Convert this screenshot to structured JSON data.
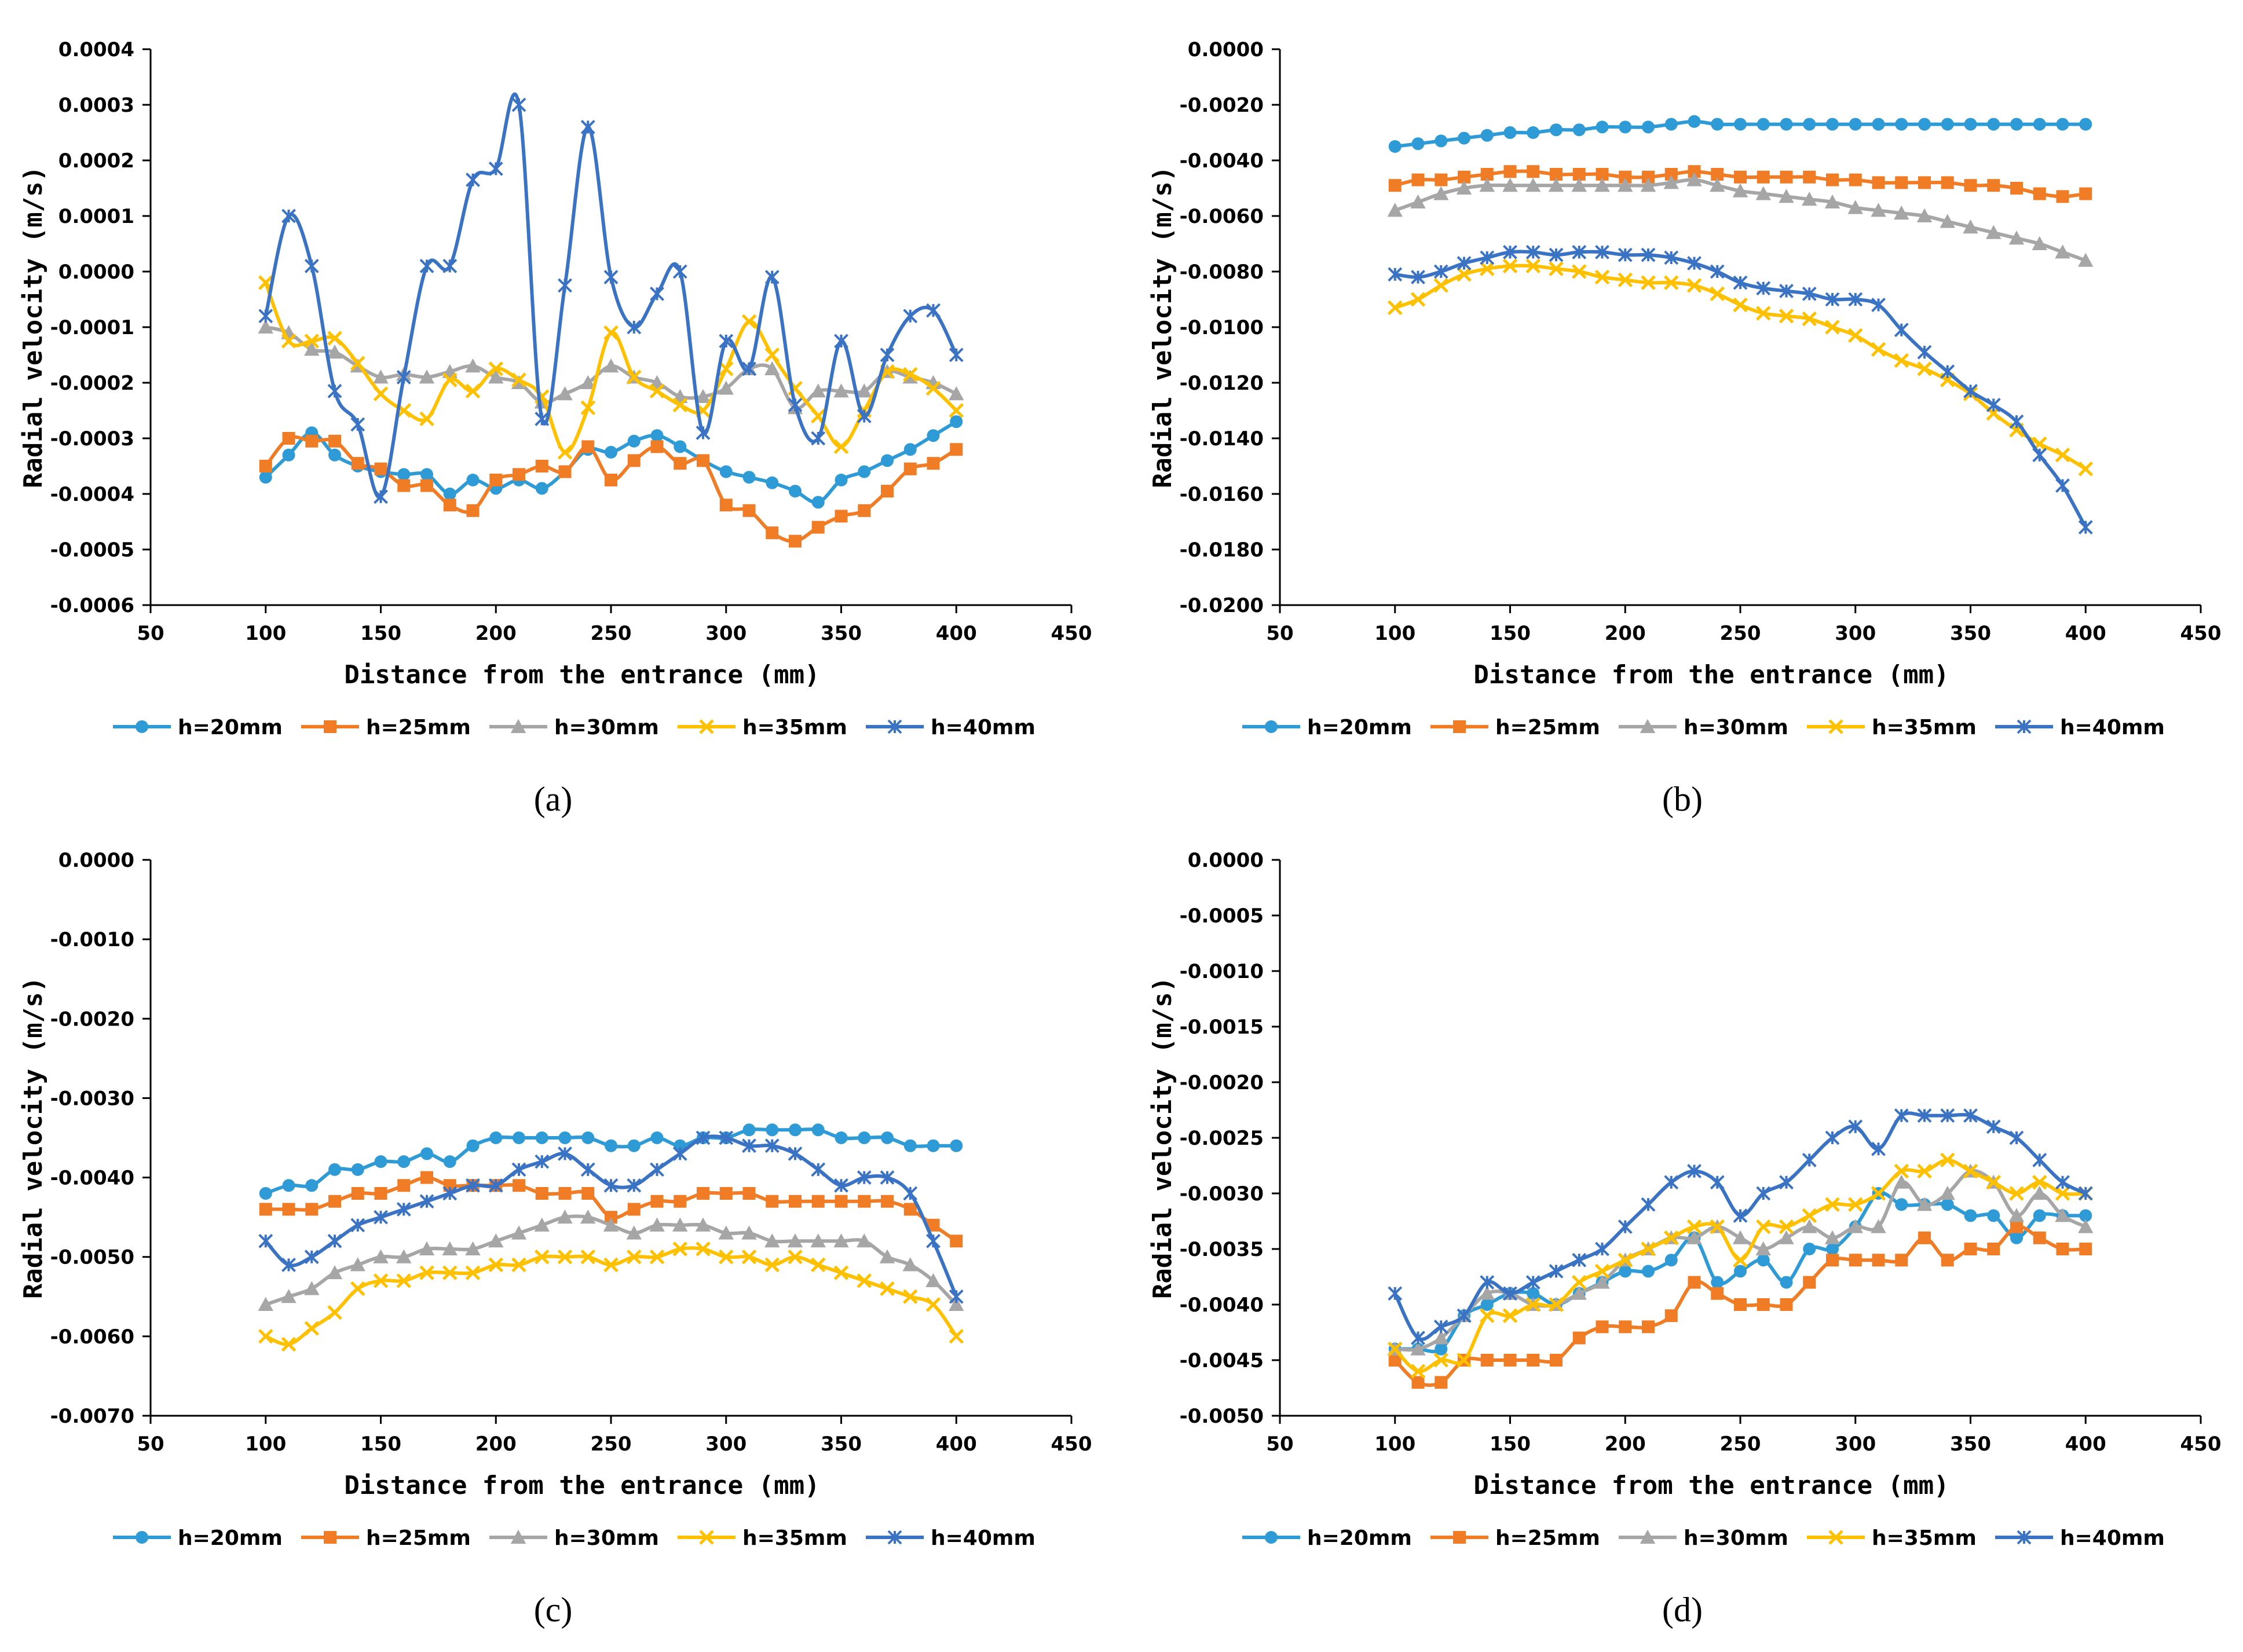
{
  "series_style": [
    {
      "color": "#2E9BD6",
      "marker": "circle"
    },
    {
      "color": "#F07C26",
      "marker": "square"
    },
    {
      "color": "#A6A6A6",
      "marker": "triangle"
    },
    {
      "color": "#FFC000",
      "marker": "x"
    },
    {
      "color": "#3A72C4",
      "marker": "star"
    }
  ],
  "chart_data": [
    {
      "type": "line",
      "caption": "(a)",
      "xlabel": "Distance from the entrance (mm)",
      "ylabel": "Radial velocity (m/s)",
      "xlim": [
        50,
        450
      ],
      "ylim": [
        -0.0006,
        0.0004
      ],
      "xticks": [
        "50",
        "100",
        "150",
        "200",
        "250",
        "300",
        "350",
        "400",
        "450"
      ],
      "yticks": [
        "0.0004",
        "0.0003",
        "0.0002",
        "0.0001",
        "0.0000",
        "-0.0001",
        "-0.0002",
        "-0.0003",
        "-0.0004",
        "-0.0005",
        "-0.0006"
      ],
      "x": [
        100,
        110,
        120,
        130,
        140,
        150,
        160,
        170,
        180,
        190,
        200,
        210,
        220,
        230,
        240,
        250,
        260,
        270,
        280,
        290,
        300,
        310,
        320,
        330,
        340,
        350,
        360,
        370,
        380,
        390,
        400
      ],
      "series": [
        {
          "name": "h=20mm",
          "values": [
            -0.00037,
            -0.00033,
            -0.00029,
            -0.00033,
            -0.00035,
            -0.00036,
            -0.000365,
            -0.000365,
            -0.0004,
            -0.000375,
            -0.00039,
            -0.000375,
            -0.00039,
            -0.00036,
            -0.00032,
            -0.000325,
            -0.000305,
            -0.000295,
            -0.000315,
            -0.00034,
            -0.00036,
            -0.00037,
            -0.00038,
            -0.000395,
            -0.000415,
            -0.000375,
            -0.00036,
            -0.00034,
            -0.00032,
            -0.000295,
            -0.00027
          ]
        },
        {
          "name": "h=25mm",
          "values": [
            -0.00035,
            -0.0003,
            -0.000305,
            -0.000305,
            -0.000345,
            -0.000355,
            -0.000385,
            -0.000385,
            -0.00042,
            -0.00043,
            -0.000375,
            -0.000365,
            -0.00035,
            -0.00036,
            -0.000315,
            -0.000375,
            -0.00034,
            -0.000315,
            -0.000345,
            -0.00034,
            -0.00042,
            -0.00043,
            -0.00047,
            -0.000485,
            -0.00046,
            -0.00044,
            -0.00043,
            -0.000395,
            -0.000355,
            -0.000345,
            -0.00032
          ]
        },
        {
          "name": "h=30mm",
          "values": [
            -0.0001,
            -0.00011,
            -0.00014,
            -0.000145,
            -0.00017,
            -0.00019,
            -0.000185,
            -0.00019,
            -0.00018,
            -0.00017,
            -0.00019,
            -0.0002,
            -0.000235,
            -0.00022,
            -0.0002,
            -0.00017,
            -0.00019,
            -0.0002,
            -0.000225,
            -0.000225,
            -0.00021,
            -0.000175,
            -0.000175,
            -0.000245,
            -0.000215,
            -0.000215,
            -0.000215,
            -0.00018,
            -0.00019,
            -0.0002,
            -0.00022
          ]
        },
        {
          "name": "h=35mm",
          "values": [
            -2e-05,
            -0.000125,
            -0.000125,
            -0.00012,
            -0.000165,
            -0.00022,
            -0.00025,
            -0.000265,
            -0.000195,
            -0.000215,
            -0.000175,
            -0.000195,
            -0.000225,
            -0.000325,
            -0.000245,
            -0.00011,
            -0.00019,
            -0.000215,
            -0.00024,
            -0.00025,
            -0.000175,
            -9e-05,
            -0.00015,
            -0.00021,
            -0.00026,
            -0.000315,
            -0.00025,
            -0.00018,
            -0.000185,
            -0.00021,
            -0.00025
          ]
        },
        {
          "name": "h=40mm",
          "values": [
            -8e-05,
            0.0001,
            1e-05,
            -0.000215,
            -0.000275,
            -0.000405,
            -0.00019,
            1e-05,
            1e-05,
            0.000165,
            0.000185,
            0.0003,
            -0.000265,
            -2.5e-05,
            0.00026,
            -1e-05,
            -0.0001,
            -4e-05,
            0,
            -0.00029,
            -0.000125,
            -0.000175,
            -1e-05,
            -0.00024,
            -0.0003,
            -0.000125,
            -0.00026,
            -0.00015,
            -8e-05,
            -7e-05,
            -0.00015
          ]
        }
      ]
    },
    {
      "type": "line",
      "caption": "(b)",
      "xlabel": "Distance from the entrance (mm)",
      "ylabel": "Radial velocity (m/s)",
      "xlim": [
        50,
        450
      ],
      "ylim": [
        -0.02,
        0
      ],
      "xticks": [
        "50",
        "100",
        "150",
        "200",
        "250",
        "300",
        "350",
        "400",
        "450"
      ],
      "yticks": [
        "0.0000",
        "-0.0020",
        "-0.0040",
        "-0.0060",
        "-0.0080",
        "-0.0100",
        "-0.0120",
        "-0.0140",
        "-0.0160",
        "-0.0180",
        "-0.0200"
      ],
      "x": [
        100,
        110,
        120,
        130,
        140,
        150,
        160,
        170,
        180,
        190,
        200,
        210,
        220,
        230,
        240,
        250,
        260,
        270,
        280,
        290,
        300,
        310,
        320,
        330,
        340,
        350,
        360,
        370,
        380,
        390,
        400
      ],
      "series": [
        {
          "name": "h=20mm",
          "values": [
            -0.0035,
            -0.0034,
            -0.0033,
            -0.0032,
            -0.0031,
            -0.003,
            -0.003,
            -0.0029,
            -0.0029,
            -0.0028,
            -0.0028,
            -0.0028,
            -0.0027,
            -0.0026,
            -0.0027,
            -0.0027,
            -0.0027,
            -0.0027,
            -0.0027,
            -0.0027,
            -0.0027,
            -0.0027,
            -0.0027,
            -0.0027,
            -0.0027,
            -0.0027,
            -0.0027,
            -0.0027,
            -0.0027,
            -0.0027,
            -0.0027
          ]
        },
        {
          "name": "h=25mm",
          "values": [
            -0.0049,
            -0.0047,
            -0.0047,
            -0.0046,
            -0.0045,
            -0.0044,
            -0.0044,
            -0.0045,
            -0.0045,
            -0.0045,
            -0.0046,
            -0.0046,
            -0.0045,
            -0.0044,
            -0.0045,
            -0.0046,
            -0.0046,
            -0.0046,
            -0.0046,
            -0.0047,
            -0.0047,
            -0.0048,
            -0.0048,
            -0.0048,
            -0.0048,
            -0.0049,
            -0.0049,
            -0.005,
            -0.0052,
            -0.0053,
            -0.0052
          ]
        },
        {
          "name": "h=30mm",
          "values": [
            -0.0058,
            -0.0055,
            -0.0052,
            -0.005,
            -0.0049,
            -0.0049,
            -0.0049,
            -0.0049,
            -0.0049,
            -0.0049,
            -0.0049,
            -0.0049,
            -0.0048,
            -0.0047,
            -0.0049,
            -0.0051,
            -0.0052,
            -0.0053,
            -0.0054,
            -0.0055,
            -0.0057,
            -0.0058,
            -0.0059,
            -0.006,
            -0.0062,
            -0.0064,
            -0.0066,
            -0.0068,
            -0.007,
            -0.0073,
            -0.0076
          ]
        },
        {
          "name": "h=35mm",
          "values": [
            -0.0093,
            -0.009,
            -0.0085,
            -0.0081,
            -0.0079,
            -0.0078,
            -0.0078,
            -0.0079,
            -0.008,
            -0.0082,
            -0.0083,
            -0.0084,
            -0.0084,
            -0.0085,
            -0.0088,
            -0.0092,
            -0.0095,
            -0.0096,
            -0.0097,
            -0.01,
            -0.0103,
            -0.0108,
            -0.0112,
            -0.0115,
            -0.0119,
            -0.0124,
            -0.0131,
            -0.0137,
            -0.0142,
            -0.0146,
            -0.0151
          ]
        },
        {
          "name": "h=40mm",
          "values": [
            -0.0081,
            -0.0082,
            -0.008,
            -0.0077,
            -0.0075,
            -0.0073,
            -0.0073,
            -0.0074,
            -0.0073,
            -0.0073,
            -0.0074,
            -0.0074,
            -0.0075,
            -0.0077,
            -0.008,
            -0.0084,
            -0.0086,
            -0.0087,
            -0.0088,
            -0.009,
            -0.009,
            -0.0092,
            -0.0101,
            -0.0109,
            -0.0116,
            -0.0123,
            -0.0128,
            -0.0134,
            -0.0146,
            -0.0157,
            -0.0172
          ]
        }
      ]
    },
    {
      "type": "line",
      "caption": "(c)",
      "xlabel": "Distance from the entrance (mm)",
      "ylabel": "Radial velocity (m/s)",
      "xlim": [
        50,
        450
      ],
      "ylim": [
        -0.007,
        0
      ],
      "xticks": [
        "50",
        "100",
        "150",
        "200",
        "250",
        "300",
        "350",
        "400",
        "450"
      ],
      "yticks": [
        "0.0000",
        "-0.0010",
        "-0.0020",
        "-0.0030",
        "-0.0040",
        "-0.0050",
        "-0.0060",
        "-0.0070"
      ],
      "x": [
        100,
        110,
        120,
        130,
        140,
        150,
        160,
        170,
        180,
        190,
        200,
        210,
        220,
        230,
        240,
        250,
        260,
        270,
        280,
        290,
        300,
        310,
        320,
        330,
        340,
        350,
        360,
        370,
        380,
        390,
        400
      ],
      "series": [
        {
          "name": "h=20mm",
          "values": [
            -0.0042,
            -0.0041,
            -0.0041,
            -0.0039,
            -0.0039,
            -0.0038,
            -0.0038,
            -0.0037,
            -0.0038,
            -0.0036,
            -0.0035,
            -0.0035,
            -0.0035,
            -0.0035,
            -0.0035,
            -0.0036,
            -0.0036,
            -0.0035,
            -0.0036,
            -0.0035,
            -0.0035,
            -0.0034,
            -0.0034,
            -0.0034,
            -0.0034,
            -0.0035,
            -0.0035,
            -0.0035,
            -0.0036,
            -0.0036,
            -0.0036
          ]
        },
        {
          "name": "h=25mm",
          "values": [
            -0.0044,
            -0.0044,
            -0.0044,
            -0.0043,
            -0.0042,
            -0.0042,
            -0.0041,
            -0.004,
            -0.0041,
            -0.0041,
            -0.0041,
            -0.0041,
            -0.0042,
            -0.0042,
            -0.0042,
            -0.0045,
            -0.0044,
            -0.0043,
            -0.0043,
            -0.0042,
            -0.0042,
            -0.0042,
            -0.0043,
            -0.0043,
            -0.0043,
            -0.0043,
            -0.0043,
            -0.0043,
            -0.0044,
            -0.0046,
            -0.0048
          ]
        },
        {
          "name": "h=30mm",
          "values": [
            -0.0056,
            -0.0055,
            -0.0054,
            -0.0052,
            -0.0051,
            -0.005,
            -0.005,
            -0.0049,
            -0.0049,
            -0.0049,
            -0.0048,
            -0.0047,
            -0.0046,
            -0.0045,
            -0.0045,
            -0.0046,
            -0.0047,
            -0.0046,
            -0.0046,
            -0.0046,
            -0.0047,
            -0.0047,
            -0.0048,
            -0.0048,
            -0.0048,
            -0.0048,
            -0.0048,
            -0.005,
            -0.0051,
            -0.0053,
            -0.0056
          ]
        },
        {
          "name": "h=35mm",
          "values": [
            -0.006,
            -0.0061,
            -0.0059,
            -0.0057,
            -0.0054,
            -0.0053,
            -0.0053,
            -0.0052,
            -0.0052,
            -0.0052,
            -0.0051,
            -0.0051,
            -0.005,
            -0.005,
            -0.005,
            -0.0051,
            -0.005,
            -0.005,
            -0.0049,
            -0.0049,
            -0.005,
            -0.005,
            -0.0051,
            -0.005,
            -0.0051,
            -0.0052,
            -0.0053,
            -0.0054,
            -0.0055,
            -0.0056,
            -0.006
          ]
        },
        {
          "name": "h=40mm",
          "values": [
            -0.0048,
            -0.0051,
            -0.005,
            -0.0048,
            -0.0046,
            -0.0045,
            -0.0044,
            -0.0043,
            -0.0042,
            -0.0041,
            -0.0041,
            -0.0039,
            -0.0038,
            -0.0037,
            -0.0039,
            -0.0041,
            -0.0041,
            -0.0039,
            -0.0037,
            -0.0035,
            -0.0035,
            -0.0036,
            -0.0036,
            -0.0037,
            -0.0039,
            -0.0041,
            -0.004,
            -0.004,
            -0.0042,
            -0.0048,
            -0.0055
          ]
        }
      ]
    },
    {
      "type": "line",
      "caption": "(d)",
      "xlabel": "Distance from the entrance (mm)",
      "ylabel": "Radial velocity (m/s)",
      "xlim": [
        50,
        450
      ],
      "ylim": [
        -0.005,
        0
      ],
      "xticks": [
        "50",
        "100",
        "150",
        "200",
        "250",
        "300",
        "350",
        "400",
        "450"
      ],
      "yticks": [
        "0.0000",
        "-0.0005",
        "-0.0010",
        "-0.0015",
        "-0.0020",
        "-0.0025",
        "-0.0030",
        "-0.0035",
        "-0.0040",
        "-0.0045",
        "-0.0050"
      ],
      "x": [
        100,
        110,
        120,
        130,
        140,
        150,
        160,
        170,
        180,
        190,
        200,
        210,
        220,
        230,
        240,
        250,
        260,
        270,
        280,
        290,
        300,
        310,
        320,
        330,
        340,
        350,
        360,
        370,
        380,
        390,
        400
      ],
      "series": [
        {
          "name": "h=20mm",
          "values": [
            -0.0044,
            -0.0044,
            -0.0044,
            -0.0041,
            -0.004,
            -0.0039,
            -0.0039,
            -0.004,
            -0.0039,
            -0.0038,
            -0.0037,
            -0.0037,
            -0.0036,
            -0.0034,
            -0.0038,
            -0.0037,
            -0.0036,
            -0.0038,
            -0.0035,
            -0.0035,
            -0.0033,
            -0.003,
            -0.0031,
            -0.0031,
            -0.0031,
            -0.0032,
            -0.0032,
            -0.0034,
            -0.0032,
            -0.0032,
            -0.0032
          ]
        },
        {
          "name": "h=25mm",
          "values": [
            -0.0045,
            -0.0047,
            -0.0047,
            -0.0045,
            -0.0045,
            -0.0045,
            -0.0045,
            -0.0045,
            -0.0043,
            -0.0042,
            -0.0042,
            -0.0042,
            -0.0041,
            -0.0038,
            -0.0039,
            -0.004,
            -0.004,
            -0.004,
            -0.0038,
            -0.0036,
            -0.0036,
            -0.0036,
            -0.0036,
            -0.0034,
            -0.0036,
            -0.0035,
            -0.0035,
            -0.0033,
            -0.0034,
            -0.0035,
            -0.0035
          ]
        },
        {
          "name": "h=30mm",
          "values": [
            -0.0044,
            -0.0044,
            -0.0043,
            -0.0041,
            -0.0039,
            -0.0039,
            -0.004,
            -0.004,
            -0.0039,
            -0.0038,
            -0.0036,
            -0.0035,
            -0.0034,
            -0.0034,
            -0.0033,
            -0.0034,
            -0.0035,
            -0.0034,
            -0.0033,
            -0.0034,
            -0.0033,
            -0.0033,
            -0.0029,
            -0.0031,
            -0.003,
            -0.0028,
            -0.0029,
            -0.0032,
            -0.003,
            -0.0032,
            -0.0033
          ]
        },
        {
          "name": "h=35mm",
          "values": [
            -0.0044,
            -0.0046,
            -0.0045,
            -0.0045,
            -0.0041,
            -0.0041,
            -0.004,
            -0.004,
            -0.0038,
            -0.0037,
            -0.0036,
            -0.0035,
            -0.0034,
            -0.0033,
            -0.0033,
            -0.0036,
            -0.0033,
            -0.0033,
            -0.0032,
            -0.0031,
            -0.0031,
            -0.003,
            -0.0028,
            -0.0028,
            -0.0027,
            -0.0028,
            -0.0029,
            -0.003,
            -0.0029,
            -0.003,
            -0.003
          ]
        },
        {
          "name": "h=40mm",
          "values": [
            -0.0039,
            -0.0043,
            -0.0042,
            -0.0041,
            -0.0038,
            -0.0039,
            -0.0038,
            -0.0037,
            -0.0036,
            -0.0035,
            -0.0033,
            -0.0031,
            -0.0029,
            -0.0028,
            -0.0029,
            -0.0032,
            -0.003,
            -0.0029,
            -0.0027,
            -0.0025,
            -0.0024,
            -0.0026,
            -0.0023,
            -0.0023,
            -0.0023,
            -0.0023,
            -0.0024,
            -0.0025,
            -0.0027,
            -0.0029,
            -0.003
          ]
        }
      ]
    }
  ]
}
